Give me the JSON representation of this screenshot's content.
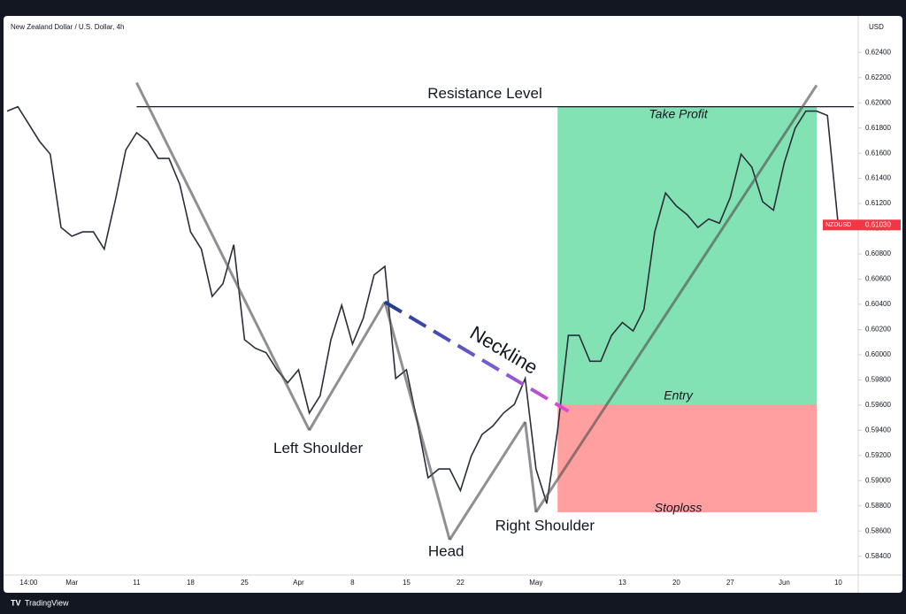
{
  "chart_data": {
    "type": "line",
    "title": "New Zealand Dollar / U.S. Dollar, 4h",
    "y_axis_label": "USD",
    "categories": [
      null,
      null,
      "14:00",
      null,
      null,
      null,
      "Mar",
      null,
      null,
      null,
      null,
      null,
      "11",
      null,
      null,
      null,
      null,
      "18",
      null,
      null,
      null,
      null,
      "25",
      null,
      null,
      null,
      null,
      "Apr",
      null,
      null,
      null,
      null,
      "8",
      null,
      null,
      null,
      null,
      "15",
      null,
      null,
      null,
      null,
      "22",
      null,
      null,
      null,
      null,
      null,
      null,
      "May",
      null,
      null,
      null,
      null,
      null,
      null,
      null,
      "13",
      null,
      null,
      null,
      null,
      "20",
      null,
      null,
      null,
      null,
      "27",
      null,
      null,
      null,
      null,
      "Jun",
      null,
      null,
      null,
      null,
      "10"
    ],
    "series": [
      {
        "name": "NZDUSD",
        "color": "#2a2e39",
        "values": [
          0.61934,
          0.61969,
          0.61832,
          0.61695,
          0.61592,
          0.6101,
          0.60941,
          0.60975,
          0.60975,
          0.60838,
          0.61215,
          0.61626,
          0.61763,
          0.61695,
          0.61558,
          0.61558,
          0.61352,
          0.60975,
          0.60838,
          0.60462,
          0.60564,
          0.60873,
          0.60119,
          0.60051,
          0.60016,
          0.5988,
          0.59777,
          0.5988,
          0.59537,
          0.59674,
          0.60119,
          0.60393,
          0.60085,
          0.6029,
          0.60633,
          0.60701,
          0.59811,
          0.5988,
          0.59469,
          0.59023,
          0.59092,
          0.59092,
          0.58921,
          0.59195,
          0.59366,
          0.59434,
          0.59537,
          0.59606,
          0.59811,
          0.59092,
          0.58818,
          0.594,
          0.60153,
          0.60153,
          0.59948,
          0.59948,
          0.60153,
          0.60256,
          0.60188,
          0.60359,
          0.60975,
          0.61284,
          0.61181,
          0.61112,
          0.6101,
          0.61078,
          0.61044,
          0.61249,
          0.61592,
          0.61489,
          0.61215,
          0.61147,
          0.61523,
          0.61797,
          0.61934,
          0.61934,
          0.619,
          0.6103
        ]
      }
    ],
    "last_price_label": "0.61030",
    "ylim": [
      0.5825,
      0.6269
    ],
    "yticks": [
      {
        "value": 0.584,
        "label": "0.58400"
      },
      {
        "value": 0.586,
        "label": "0.58600"
      },
      {
        "value": 0.588,
        "label": "0.58800"
      },
      {
        "value": 0.59,
        "label": "0.59000"
      },
      {
        "value": 0.592,
        "label": "0.59200"
      },
      {
        "value": 0.594,
        "label": "0.59400"
      },
      {
        "value": 0.596,
        "label": "0.59600"
      },
      {
        "value": 0.598,
        "label": "0.59800"
      },
      {
        "value": 0.6,
        "label": "0.60000"
      },
      {
        "value": 0.602,
        "label": "0.60200"
      },
      {
        "value": 0.604,
        "label": "0.60400"
      },
      {
        "value": 0.606,
        "label": "0.60600"
      },
      {
        "value": 0.608,
        "label": "0.60800"
      },
      {
        "value": 0.61,
        "label": "0.61000"
      },
      {
        "value": 0.612,
        "label": "0.61200"
      },
      {
        "value": 0.614,
        "label": "0.61400"
      },
      {
        "value": 0.616,
        "label": "0.61600"
      },
      {
        "value": 0.618,
        "label": "0.61800"
      },
      {
        "value": 0.62,
        "label": "0.62000"
      },
      {
        "value": 0.622,
        "label": "0.62200"
      },
      {
        "value": 0.624,
        "label": "0.62400"
      }
    ],
    "resistance": {
      "label": "Resistance Level",
      "value": 0.61969,
      "start": 12
    },
    "trade": {
      "range": [
        51,
        75
      ],
      "take_profit": {
        "label": "Take Profit",
        "value": 0.61969
      },
      "entry": {
        "label": "Entry",
        "value": 0.59606
      },
      "stoploss": {
        "label": "Stoploss",
        "value": 0.58749
      }
    },
    "pattern": {
      "points": [
        [
          12,
          0.6216
        ],
        [
          28,
          0.594
        ],
        [
          35,
          0.60418
        ],
        [
          41,
          0.5853
        ],
        [
          48,
          0.59466
        ],
        [
          49,
          0.58749
        ],
        [
          75,
          0.6214
        ]
      ],
      "left_shoulder": "Left Shoulder",
      "head": "Head",
      "right_shoulder": "Right Shoulder"
    },
    "neckline": {
      "label": "Neckline",
      "points": [
        [
          35,
          0.60418
        ],
        [
          52,
          0.59551
        ]
      ]
    },
    "brand": "TradingView"
  }
}
